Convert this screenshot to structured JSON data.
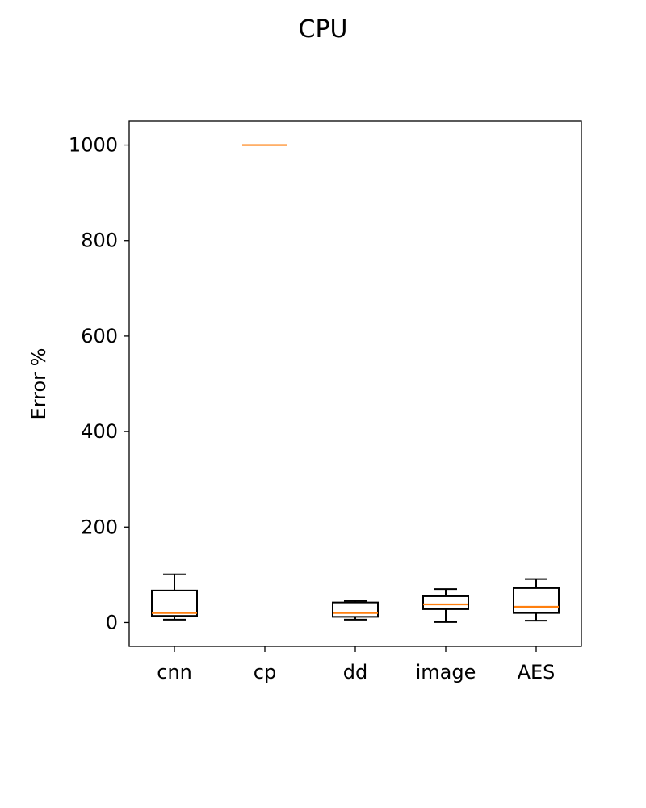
{
  "chart_data": {
    "type": "box",
    "title": "CPU",
    "xlabel": "",
    "ylabel": "Error %",
    "categories": [
      "cnn",
      "cp",
      "dd",
      "image",
      "AES"
    ],
    "ylim": [
      -50,
      1050
    ],
    "yticks": [
      0,
      200,
      400,
      600,
      800,
      1000
    ],
    "boxes": [
      {
        "category": "cnn",
        "whisker_low": 6,
        "q1": 14,
        "median": 20,
        "q3": 67,
        "whisker_high": 101
      },
      {
        "category": "cp",
        "whisker_low": 1000,
        "q1": 1000,
        "median": 1000,
        "q3": 1000,
        "whisker_high": 1000
      },
      {
        "category": "dd",
        "whisker_low": 6,
        "q1": 12,
        "median": 20,
        "q3": 42,
        "whisker_high": 45
      },
      {
        "category": "image",
        "whisker_low": 1,
        "q1": 28,
        "median": 38,
        "q3": 55,
        "whisker_high": 70
      },
      {
        "category": "AES",
        "whisker_low": 4,
        "q1": 20,
        "median": 33,
        "q3": 72,
        "whisker_high": 91
      }
    ],
    "colors": {
      "box": "#000000",
      "median": "#ff7f0e"
    },
    "grid": false,
    "legend": "none"
  }
}
